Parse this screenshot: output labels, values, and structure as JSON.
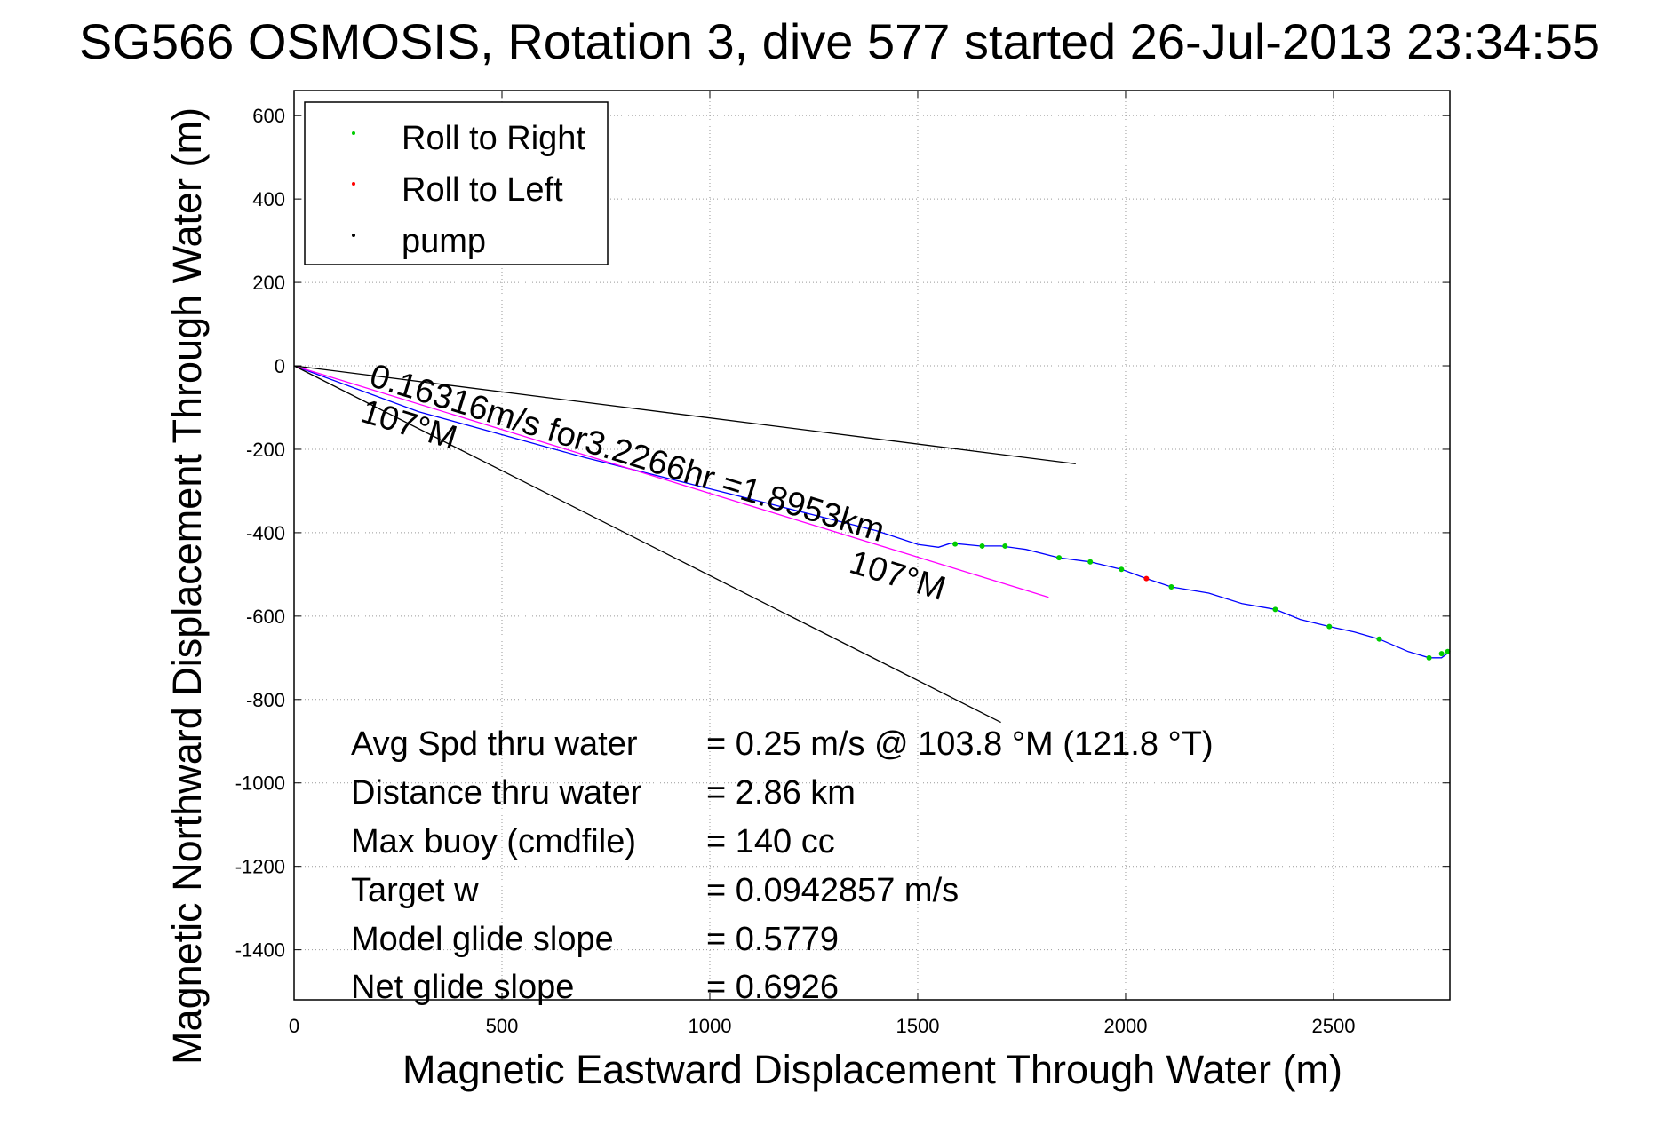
{
  "chart_data": {
    "type": "scatter",
    "title": "SG566 OSMOSIS, Rotation 3, dive 577 started 26-Jul-2013 23:34:55",
    "xlabel": "Magnetic Eastward Displacement Through Water (m)",
    "ylabel": "Magnetic Northward Displacement Through Water (m)",
    "xlim": [
      0,
      2780
    ],
    "ylim": [
      -1520,
      660
    ],
    "xticks": [
      0,
      500,
      1000,
      1500,
      2000,
      2500
    ],
    "yticks": [
      600,
      400,
      200,
      0,
      -200,
      -400,
      -600,
      -800,
      -1000,
      -1200,
      -1400
    ],
    "grid": true,
    "legend_position": "top-left",
    "legend": [
      {
        "label": "Roll to Right",
        "color": "#00cc00"
      },
      {
        "label": "Roll to Left",
        "color": "#ff0000"
      },
      {
        "label": "pump",
        "color": "#000000"
      }
    ],
    "series": [
      {
        "name": "track",
        "kind": "line",
        "color": "#0000ff",
        "x": [
          0,
          300,
          700,
          1100,
          1400,
          1500,
          1550,
          1580,
          1650,
          1700,
          1760,
          1840,
          1915,
          1990,
          2050,
          2110,
          2200,
          2280,
          2360,
          2420,
          2490,
          2550,
          2610,
          2680,
          2730,
          2760,
          2780
        ],
        "y": [
          0,
          -110,
          -220,
          -320,
          -395,
          -428,
          -435,
          -425,
          -432,
          -432,
          -440,
          -460,
          -470,
          -488,
          -510,
          -530,
          -545,
          -570,
          -584,
          -608,
          -625,
          -638,
          -655,
          -685,
          -700,
          -700,
          -685
        ]
      },
      {
        "name": "Roll to Right",
        "kind": "points",
        "color": "#00cc00",
        "x": [
          1590,
          1655,
          1710,
          1840,
          1915,
          1990,
          2110,
          2360,
          2490,
          2610,
          2730,
          2760,
          2775
        ],
        "y": [
          -427,
          -432,
          -432,
          -460,
          -470,
          -488,
          -530,
          -584,
          -625,
          -655,
          -700,
          -690,
          -685
        ]
      },
      {
        "name": "Roll to Left",
        "kind": "points",
        "color": "#ff0000",
        "x": [
          2050
        ],
        "y": [
          -510
        ]
      },
      {
        "name": "",
        "kind": "line",
        "color": "#ff00ff",
        "x": [
          0,
          1815
        ],
        "y": [
          0,
          -555
        ]
      },
      {
        "name": "",
        "kind": "line",
        "color": "#000000",
        "x": [
          0,
          1880
        ],
        "y": [
          0,
          -235
        ]
      },
      {
        "name": "",
        "kind": "line",
        "color": "#000000",
        "x": [
          0,
          1700
        ],
        "y": [
          0,
          -855
        ]
      }
    ],
    "annotations": {
      "speed_label": "0.16316m/s for3.2266hr =1.8953km",
      "heading_start": "107°M",
      "heading_end": "107°M"
    },
    "stats": [
      {
        "label": "Avg Spd thru water",
        "value": "=  0.25 m/s @ 103.8 °M (121.8 °T)"
      },
      {
        "label": "Distance thru water",
        "value": "=  2.86 km"
      },
      {
        "label": "Max buoy (cmdfile)",
        "value": "= 140 cc"
      },
      {
        "label": "Target w",
        "value": "= 0.0942857 m/s"
      },
      {
        "label": "Model glide slope",
        "value": "= 0.5779"
      },
      {
        "label": "Net glide slope",
        "value": "= 0.6926"
      }
    ]
  }
}
